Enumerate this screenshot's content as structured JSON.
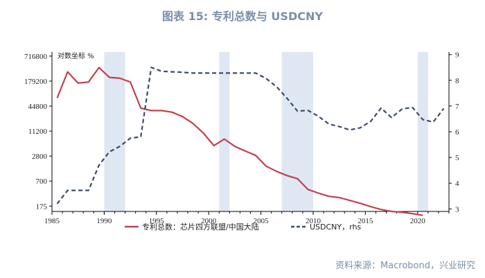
{
  "title": "图表 15: 专利总数与 USDCNY",
  "source": "资料来源：Macrobond，兴业研究",
  "colors": {
    "patents": "#c0404f",
    "usdcny": "#3b4a66",
    "shade": "#dfe7f3",
    "title": "#7b8fa8"
  },
  "chart_data": {
    "type": "line",
    "left_axis_note": "对数坐标 %",
    "x_ticks": [
      1985,
      1990,
      1995,
      2000,
      2005,
      2010,
      2015,
      2020
    ],
    "xlim": [
      1985,
      2023
    ],
    "y_left": {
      "scale": "log",
      "ticks": [
        175,
        700,
        2800,
        11200,
        44800,
        179200,
        716800
      ],
      "tick_labels": [
        "175",
        "700",
        "2800",
        "11200",
        "44800",
        "179200",
        "716800"
      ],
      "lim": [
        130,
        900000
      ]
    },
    "y_right": {
      "scale": "linear",
      "ticks": [
        3,
        4,
        5,
        6,
        7,
        8,
        9
      ],
      "lim": [
        2.9,
        9.1
      ]
    },
    "shaded_periods": [
      [
        1990,
        1992
      ],
      [
        2001,
        2002
      ],
      [
        2007,
        2010
      ],
      [
        2020,
        2021
      ]
    ],
    "series": [
      {
        "name": "专利总数：芯片四方联盟/中国大陆",
        "axis": "left",
        "style": "solid",
        "x": [
          1985.5,
          1986.5,
          1987.5,
          1988.5,
          1989.5,
          1990.5,
          1991.5,
          1992.5,
          1993.5,
          1994.5,
          1995.5,
          1996.5,
          1997.5,
          1998.5,
          1999.5,
          2000.5,
          2001.5,
          2002.5,
          2003.5,
          2004.5,
          2005.5,
          2006.5,
          2007.5,
          2008.5,
          2009.5,
          2010.5,
          2011.5,
          2012.5,
          2013.5,
          2014.5,
          2015.5,
          2016.5,
          2017.5,
          2018.5,
          2019.5,
          2020.5
        ],
        "values": [
          70000,
          300000,
          160000,
          170000,
          380000,
          220000,
          210000,
          170000,
          40000,
          35000,
          35000,
          32000,
          25000,
          17000,
          10000,
          5000,
          7200,
          4800,
          3700,
          2900,
          1600,
          1200,
          950,
          800,
          440,
          360,
          300,
          280,
          240,
          205,
          170,
          145,
          130,
          125,
          115,
          105
        ]
      },
      {
        "name": "USDCNY，rhs",
        "axis": "right",
        "style": "dashed",
        "x": [
          1985.5,
          1986.5,
          1987.5,
          1988.5,
          1989.5,
          1990.5,
          1991.5,
          1992.5,
          1993.5,
          1994.5,
          1995.5,
          1996.5,
          1997.5,
          1998.5,
          1999.5,
          2000.5,
          2001.5,
          2002.5,
          2003.5,
          2004.5,
          2005.5,
          2006.5,
          2007.5,
          2008.5,
          2009.5,
          2010.5,
          2011.5,
          2012.5,
          2013.5,
          2014.5,
          2015.5,
          2016.5,
          2017.5,
          2018.5,
          2019.5,
          2020.5,
          2021.5,
          2022.5
        ],
        "values": [
          3.2,
          3.72,
          3.72,
          3.72,
          4.7,
          5.22,
          5.43,
          5.75,
          5.8,
          8.5,
          8.35,
          8.33,
          8.31,
          8.28,
          8.28,
          8.28,
          8.28,
          8.28,
          8.28,
          8.28,
          8.07,
          7.75,
          7.3,
          6.8,
          6.83,
          6.6,
          6.3,
          6.2,
          6.07,
          6.15,
          6.4,
          6.92,
          6.55,
          6.88,
          6.95,
          6.47,
          6.38,
          6.9
        ]
      }
    ]
  }
}
